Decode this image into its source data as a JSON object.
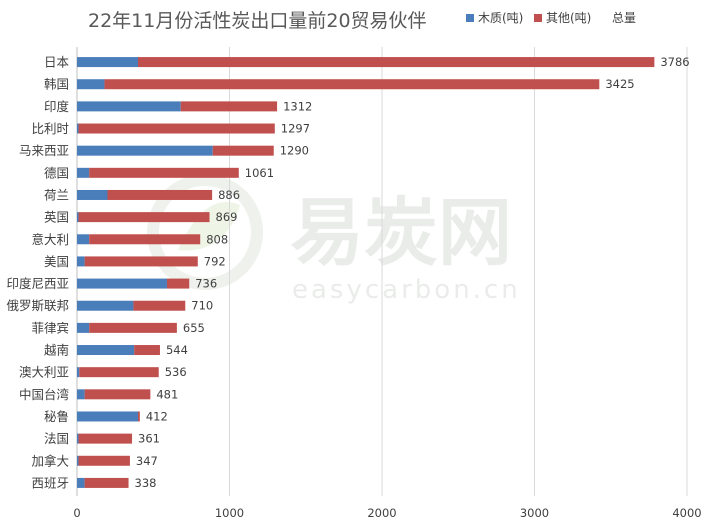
{
  "chart_data": {
    "type": "bar",
    "orientation": "horizontal",
    "stacked": true,
    "title": "22年11月份活性炭出口量前20贸易伙伴",
    "legend": {
      "position": "top-right",
      "entries": [
        "木质(吨)",
        "其他(吨)",
        "总量"
      ]
    },
    "categories": [
      "日本",
      "韩国",
      "印度",
      "比利时",
      "马来西亚",
      "德国",
      "荷兰",
      "英国",
      "意大利",
      "美国",
      "印度尼西亚",
      "俄罗斯联邦",
      "菲律宾",
      "越南",
      "澳大利亚",
      "中国台湾",
      "秘鲁",
      "法国",
      "加拿大",
      "西班牙"
    ],
    "series": [
      {
        "name": "木质(吨)",
        "color": "#4a7ebb",
        "values": [
          400,
          180,
          680,
          10,
          890,
          80,
          200,
          10,
          80,
          50,
          590,
          370,
          80,
          375,
          15,
          50,
          400,
          10,
          10,
          50
        ]
      },
      {
        "name": "其他(吨)",
        "color": "#c0504d",
        "values": [
          3386,
          3245,
          632,
          1287,
          400,
          981,
          686,
          859,
          728,
          742,
          146,
          340,
          575,
          169,
          521,
          431,
          12,
          351,
          337,
          288
        ]
      }
    ],
    "totals_label": "总量",
    "totals": [
      3786,
      3425,
      1312,
      1297,
      1290,
      1061,
      886,
      869,
      808,
      792,
      736,
      710,
      655,
      544,
      536,
      481,
      412,
      361,
      347,
      338
    ],
    "xticks": [
      "0",
      "1000",
      "2000",
      "3000",
      "4000"
    ],
    "xlim": [
      0,
      4000
    ],
    "grid": "vertical"
  },
  "watermark": {
    "text": "易炭网",
    "sub": "easycarbon.cn"
  }
}
